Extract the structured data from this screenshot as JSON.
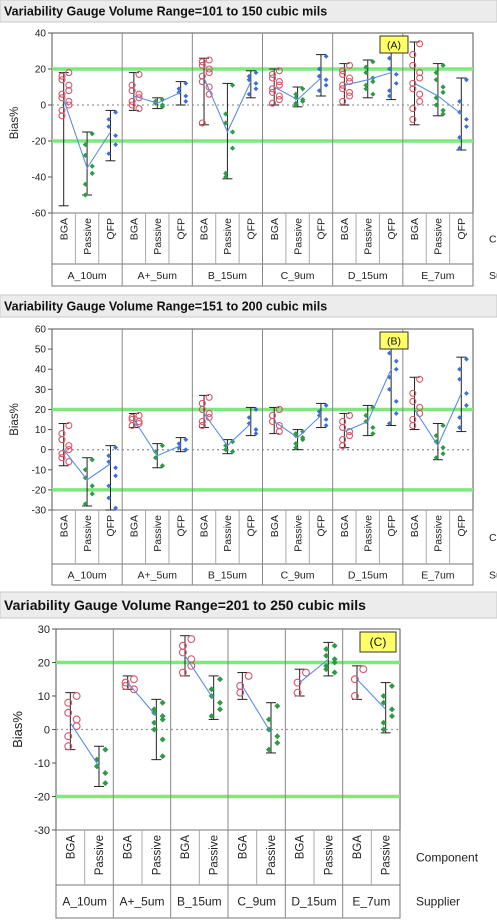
{
  "colors": {
    "title_bg": "#ececec",
    "ref_line": "#7ee87e",
    "zero_line": "#9a9a9a",
    "bga": "#d9546a",
    "passive": "#2f9a46",
    "qfp": "#3a6fd3",
    "annot_bg": "#ffff66",
    "mean_line": "#5a8fe0",
    "range_bar": "#222222"
  },
  "labels": {
    "ylabel": "Bias%",
    "component_label": "Component",
    "supplier_label": "Supplier"
  },
  "chart_data": [
    {
      "type": "scatter",
      "title": "Variability Gauge Volume Range=101 to 150 cubic mils",
      "annotation": "(A)",
      "ylabel": "Bias%",
      "ylim": [
        -60,
        40
      ],
      "yticks": [
        -60,
        -40,
        -20,
        0,
        20,
        40
      ],
      "reference_lines": [
        20,
        -20
      ],
      "zero_line": 0,
      "grid": false,
      "components": [
        "BGA",
        "Passive",
        "QFP"
      ],
      "suppliers": [
        {
          "name": "A_10um",
          "groups": {
            "BGA": {
              "range": [
                -56,
                18
              ],
              "mean": 3,
              "values": [
                18,
                16,
                14,
                11,
                8,
                6,
                4,
                2,
                0,
                -3,
                -6
              ]
            },
            "Passive": {
              "range": [
                -50,
                -15
              ],
              "mean": -35,
              "values": [
                -16,
                -22,
                -28,
                -34,
                -38,
                -44,
                -50
              ]
            },
            "QFP": {
              "range": [
                -31,
                -3
              ],
              "mean": -15,
              "values": [
                -4,
                -8,
                -12,
                -17,
                -22,
                -27
              ]
            }
          }
        },
        {
          "name": "A+_5um",
          "groups": {
            "BGA": {
              "range": [
                -3,
                18
              ],
              "mean": 5,
              "values": [
                17,
                11,
                8,
                6,
                4,
                2,
                0,
                -2
              ]
            },
            "Passive": {
              "range": [
                -2,
                4
              ],
              "mean": 1,
              "values": [
                3,
                2,
                1,
                0,
                -1
              ]
            },
            "QFP": {
              "range": [
                0,
                13
              ],
              "mean": 7,
              "values": [
                12,
                9,
                7,
                5,
                2
              ]
            }
          }
        },
        {
          "name": "B_15um",
          "groups": {
            "BGA": {
              "range": [
                -11,
                26
              ],
              "mean": 15,
              "values": [
                25,
                24,
                22,
                20,
                18,
                16,
                13,
                10,
                6,
                -10
              ]
            },
            "Passive": {
              "range": [
                -41,
                12
              ],
              "mean": -15,
              "values": [
                11,
                -5,
                -10,
                -15,
                -24,
                -38,
                -40
              ]
            },
            "QFP": {
              "range": [
                4,
                19
              ],
              "mean": 13,
              "values": [
                18,
                16,
                14,
                12,
                9,
                6
              ]
            }
          }
        },
        {
          "name": "C_9um",
          "groups": {
            "BGA": {
              "range": [
                0,
                20
              ],
              "mean": 10,
              "values": [
                19,
                17,
                15,
                13,
                11,
                9,
                7,
                5,
                3,
                1
              ]
            },
            "Passive": {
              "range": [
                -1,
                10
              ],
              "mean": 3,
              "values": [
                9,
                6,
                4,
                3,
                2,
                1,
                0
              ]
            },
            "QFP": {
              "range": [
                5,
                28
              ],
              "mean": 15,
              "values": [
                27,
                20,
                16,
                14,
                11,
                8
              ]
            }
          }
        },
        {
          "name": "D_15um",
          "groups": {
            "BGA": {
              "range": [
                0,
                23
              ],
              "mean": 11,
              "values": [
                22,
                19,
                17,
                15,
                13,
                11,
                9,
                7,
                5,
                2
              ]
            },
            "Passive": {
              "range": [
                4,
                25
              ],
              "mean": 14,
              "values": [
                24,
                21,
                18,
                15,
                13,
                11,
                9,
                6
              ]
            },
            "QFP": {
              "range": [
                3,
                33
              ],
              "mean": 18,
              "values": [
                32,
                26,
                20,
                17,
                12,
                8,
                5
              ]
            }
          }
        },
        {
          "name": "E_7um",
          "groups": {
            "BGA": {
              "range": [
                -11,
                35
              ],
              "mean": 12,
              "values": [
                34,
                28,
                22,
                18,
                15,
                12,
                9,
                6,
                2,
                -2,
                -8
              ]
            },
            "Passive": {
              "range": [
                -6,
                23
              ],
              "mean": 5,
              "values": [
                22,
                18,
                14,
                10,
                7,
                4,
                0,
                -3,
                -5
              ]
            },
            "QFP": {
              "range": [
                -25,
                15
              ],
              "mean": -5,
              "values": [
                14,
                2,
                -4,
                -8,
                -12,
                -18,
                -24
              ]
            }
          }
        }
      ]
    },
    {
      "type": "scatter",
      "title": "Variability Gauge Volume Range=151 to 200 cubic mils",
      "annotation": "(B)",
      "ylabel": "Bias%",
      "ylim": [
        -30,
        60
      ],
      "yticks": [
        -30,
        -20,
        -10,
        0,
        10,
        20,
        30,
        40,
        50,
        60
      ],
      "reference_lines": [
        20,
        -20
      ],
      "zero_line": 0,
      "grid": false,
      "components": [
        "BGA",
        "Passive",
        "QFP"
      ],
      "suppliers": [
        {
          "name": "A_10um",
          "groups": {
            "BGA": {
              "range": [
                -8,
                13
              ],
              "mean": 0,
              "values": [
                12,
                8,
                5,
                2,
                0,
                -2,
                -4,
                -6
              ]
            },
            "Passive": {
              "range": [
                -28,
                -4
              ],
              "mean": -15,
              "values": [
                -5,
                -10,
                -14,
                -18,
                -22,
                -27
              ]
            },
            "QFP": {
              "range": [
                -30,
                2
              ],
              "mean": -7,
              "values": [
                1,
                -3,
                -6,
                -9,
                -13,
                -18,
                -24,
                -29
              ]
            }
          }
        },
        {
          "name": "A+_5um",
          "groups": {
            "BGA": {
              "range": [
                11,
                18
              ],
              "mean": 15,
              "values": [
                17,
                16,
                15,
                14,
                13,
                12
              ]
            },
            "Passive": {
              "range": [
                -9,
                3
              ],
              "mean": -3,
              "values": [
                2,
                -1,
                -4,
                -8
              ]
            },
            "QFP": {
              "range": [
                -1,
                6
              ],
              "mean": 2,
              "values": [
                5,
                3,
                1,
                0
              ]
            }
          }
        },
        {
          "name": "B_15um",
          "groups": {
            "BGA": {
              "range": [
                11,
                27
              ],
              "mean": 18,
              "values": [
                26,
                23,
                20,
                18,
                16,
                14,
                12
              ]
            },
            "Passive": {
              "range": [
                -2,
                5
              ],
              "mean": 2,
              "values": [
                4,
                2,
                0,
                -1
              ]
            },
            "QFP": {
              "range": [
                7,
                21
              ],
              "mean": 13,
              "values": [
                20,
                16,
                13,
                10,
                8
              ]
            }
          }
        },
        {
          "name": "C_9um",
          "groups": {
            "BGA": {
              "range": [
                8,
                21
              ],
              "mean": 14,
              "values": [
                20,
                17,
                14,
                12,
                9
              ]
            },
            "Passive": {
              "range": [
                0,
                10
              ],
              "mean": 6,
              "values": [
                9,
                8,
                7,
                6,
                5,
                3,
                1
              ]
            },
            "QFP": {
              "range": [
                11,
                23
              ],
              "mean": 17,
              "values": [
                22,
                19,
                17,
                15,
                12
              ]
            }
          }
        },
        {
          "name": "D_15um",
          "groups": {
            "BGA": {
              "range": [
                1,
                18
              ],
              "mean": 9,
              "values": [
                17,
                14,
                11,
                9,
                7,
                5,
                2
              ]
            },
            "Passive": {
              "range": [
                7,
                22
              ],
              "mean": 14,
              "values": [
                21,
                17,
                14,
                11,
                8
              ]
            },
            "QFP": {
              "range": [
                12,
                57
              ],
              "mean": 40,
              "values": [
                56,
                52,
                48,
                44,
                40,
                36,
                30,
                24,
                18,
                13
              ]
            }
          }
        },
        {
          "name": "E_7um",
          "groups": {
            "BGA": {
              "range": [
                10,
                36
              ],
              "mean": 20,
              "values": [
                35,
                28,
                24,
                21,
                18,
                15,
                12
              ]
            },
            "Passive": {
              "range": [
                -5,
                13
              ],
              "mean": 2,
              "values": [
                12,
                7,
                4,
                1,
                -2,
                -4
              ]
            },
            "QFP": {
              "range": [
                9,
                46
              ],
              "mean": 28,
              "values": [
                45,
                40,
                35,
                28,
                22,
                16,
                11
              ]
            }
          }
        }
      ]
    },
    {
      "type": "scatter",
      "title": "Variability Gauge Volume Range=201 to 250 cubic mils",
      "annotation": "(C)",
      "ylabel": "Bias%",
      "ylim": [
        -30,
        30
      ],
      "yticks": [
        -30,
        -20,
        -10,
        0,
        10,
        20,
        30
      ],
      "reference_lines": [
        20,
        -20
      ],
      "zero_line": 0,
      "grid": false,
      "components": [
        "BGA",
        "Passive"
      ],
      "suppliers": [
        {
          "name": "A_10um",
          "groups": {
            "BGA": {
              "range": [
                -6,
                11
              ],
              "mean": 2,
              "values": [
                10,
                8,
                5,
                3,
                1,
                -2,
                -5
              ]
            },
            "Passive": {
              "range": [
                -17,
                -5
              ],
              "mean": -11,
              "values": [
                -6,
                -9,
                -11,
                -13,
                -16
              ]
            }
          }
        },
        {
          "name": "A+_5um",
          "groups": {
            "BGA": {
              "range": [
                12,
                16
              ],
              "mean": 14,
              "values": [
                15,
                14,
                13,
                12
              ]
            },
            "Passive": {
              "range": [
                -9,
                9
              ],
              "mean": 4,
              "values": [
                8,
                6,
                5,
                4,
                3,
                2,
                0,
                -3,
                -8
              ]
            }
          }
        },
        {
          "name": "B_15um",
          "groups": {
            "BGA": {
              "range": [
                16,
                28
              ],
              "mean": 22,
              "values": [
                27,
                25,
                23,
                21,
                19,
                17
              ]
            },
            "Passive": {
              "range": [
                3,
                16
              ],
              "mean": 9,
              "values": [
                15,
                12,
                10,
                8,
                6,
                4
              ]
            }
          }
        },
        {
          "name": "C_9um",
          "groups": {
            "BGA": {
              "range": [
                9,
                17
              ],
              "mean": 13,
              "values": [
                16,
                13,
                11
              ]
            },
            "Passive": {
              "range": [
                -7,
                8
              ],
              "mean": -1,
              "values": [
                7,
                3,
                0,
                -2,
                -4,
                -6
              ]
            }
          }
        },
        {
          "name": "D_15um",
          "groups": {
            "BGA": {
              "range": [
                10,
                18
              ],
              "mean": 14,
              "values": [
                17,
                14,
                11
              ]
            },
            "Passive": {
              "range": [
                16,
                26
              ],
              "mean": 21,
              "values": [
                25,
                24,
                22,
                21,
                20,
                19,
                18,
                17
              ]
            }
          }
        },
        {
          "name": "E_7um",
          "groups": {
            "BGA": {
              "range": [
                9,
                19
              ],
              "mean": 15,
              "values": [
                18,
                15,
                10
              ]
            },
            "Passive": {
              "range": [
                -1,
                14
              ],
              "mean": 6,
              "values": [
                13,
                10,
                8,
                6,
                4,
                2,
                0
              ]
            }
          }
        }
      ]
    }
  ]
}
